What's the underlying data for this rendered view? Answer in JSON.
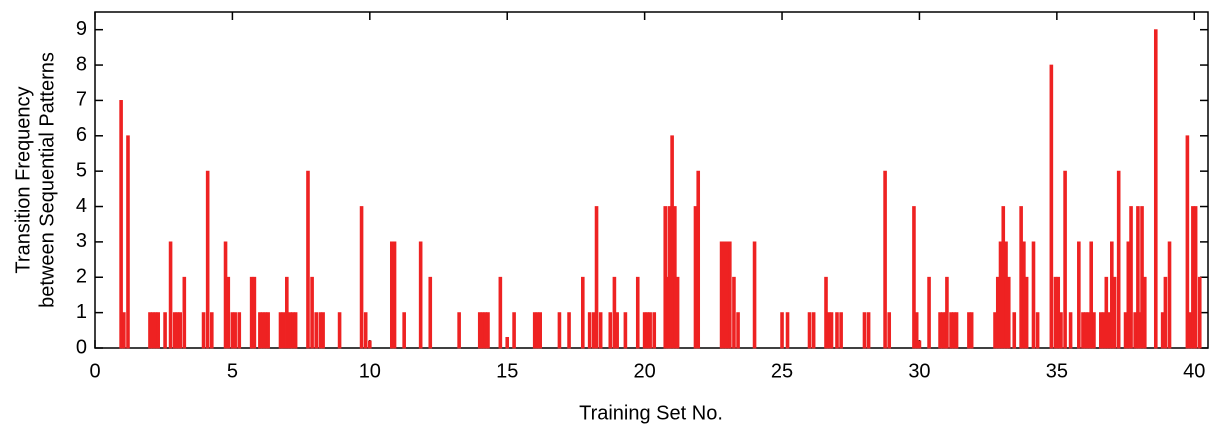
{
  "chart_data": {
    "type": "bar",
    "xlabel": "Training Set No.",
    "ylabel": [
      "Transition Frequency",
      "between Sequential Patterns"
    ],
    "color": "#ee2222",
    "xlim": [
      0,
      40.5
    ],
    "xticks": [
      0,
      5,
      10,
      15,
      20,
      25,
      30,
      35,
      40
    ],
    "ylim": [
      0,
      9.5
    ],
    "yticks": [
      0,
      1,
      2,
      3,
      4,
      5,
      6,
      7,
      8,
      9
    ],
    "x": [
      0.95,
      1.05,
      1.2,
      2.0,
      2.1,
      2.2,
      2.3,
      2.55,
      2.75,
      2.9,
      3.0,
      3.1,
      3.25,
      3.95,
      4.1,
      4.25,
      4.75,
      4.85,
      5.0,
      5.1,
      5.25,
      5.7,
      5.8,
      6.0,
      6.1,
      6.2,
      6.3,
      6.75,
      6.85,
      6.98,
      7.1,
      7.2,
      7.3,
      7.75,
      7.9,
      8.05,
      8.2,
      8.3,
      8.9,
      9.7,
      9.85,
      10.0,
      10.8,
      10.9,
      11.25,
      11.85,
      12.2,
      13.25,
      14.0,
      14.1,
      14.2,
      14.3,
      14.75,
      15.0,
      15.25,
      16.0,
      16.1,
      16.2,
      16.9,
      17.25,
      17.75,
      18.0,
      18.15,
      18.25,
      18.4,
      18.75,
      18.9,
      19.0,
      19.3,
      19.75,
      20.0,
      20.1,
      20.2,
      20.35,
      20.75,
      20.85,
      20.9,
      21.0,
      21.1,
      21.2,
      21.85,
      21.95,
      22.8,
      22.9,
      23.0,
      23.1,
      23.25,
      23.4,
      24.0,
      25.0,
      25.2,
      26.0,
      26.15,
      26.6,
      26.7,
      26.8,
      27.0,
      27.15,
      28.0,
      28.15,
      28.75,
      28.9,
      29.8,
      29.9,
      30.0,
      30.35,
      30.75,
      30.85,
      30.95,
      31.0,
      31.15,
      31.25,
      31.35,
      31.8,
      31.9,
      32.75,
      32.85,
      32.95,
      33.05,
      33.15,
      33.25,
      33.45,
      33.7,
      33.8,
      33.9,
      34.15,
      34.3,
      34.8,
      34.95,
      35.05,
      35.15,
      35.3,
      35.5,
      35.8,
      35.95,
      36.05,
      36.15,
      36.25,
      36.35,
      36.6,
      36.7,
      36.8,
      36.9,
      37.0,
      37.1,
      37.25,
      37.5,
      37.6,
      37.7,
      37.85,
      37.95,
      38.0,
      38.1,
      38.2,
      38.6,
      38.85,
      38.95,
      39.1,
      39.75,
      39.85,
      39.95,
      40.05,
      40.2
    ],
    "values": [
      7,
      1,
      6,
      1,
      1,
      1,
      1,
      1,
      3,
      1,
      1,
      1,
      2,
      1,
      5,
      1,
      3,
      2,
      1,
      1,
      1,
      2,
      2,
      1,
      1,
      1,
      1,
      1,
      1,
      2,
      1,
      1,
      1,
      5,
      2,
      1,
      1,
      1,
      1,
      4,
      1,
      0.2,
      3,
      3,
      1,
      3,
      2,
      1,
      1,
      1,
      1,
      1,
      2,
      0.3,
      1,
      1,
      1,
      1,
      1,
      1,
      2,
      1,
      1,
      4,
      1,
      1,
      2,
      1,
      1,
      2,
      1,
      1,
      1,
      1,
      4,
      2,
      4,
      6,
      4,
      2,
      4,
      5,
      3,
      3,
      3,
      3,
      2,
      1,
      3,
      1,
      1,
      1,
      1,
      2,
      1,
      1,
      1,
      1,
      1,
      1,
      5,
      1,
      4,
      1,
      0.2,
      2,
      1,
      1,
      1,
      2,
      1,
      1,
      1,
      1,
      1,
      1,
      2,
      3,
      4,
      3,
      2,
      1,
      4,
      3,
      2,
      3,
      1,
      8,
      2,
      2,
      1,
      5,
      1,
      3,
      1,
      1,
      1,
      3,
      1,
      1,
      1,
      2,
      1,
      3,
      2,
      5,
      1,
      3,
      4,
      1,
      4,
      1,
      4,
      2,
      9,
      1,
      2,
      3,
      6,
      1,
      4,
      4,
      2
    ]
  }
}
